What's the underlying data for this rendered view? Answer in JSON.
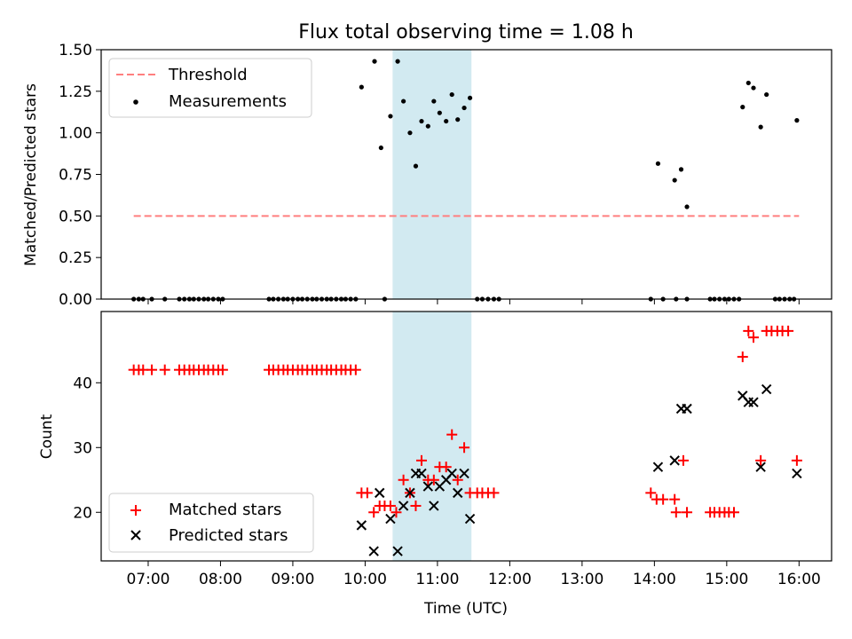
{
  "title": "Flux total observing time = 1.08 h",
  "chart_data": [
    {
      "type": "scatter",
      "ylabel": "Matched/Predicted stars",
      "xlim": [
        6.35,
        16.45
      ],
      "ylim": [
        0,
        1.5
      ],
      "yticks": [
        0.0,
        0.25,
        0.5,
        0.75,
        1.0,
        1.25,
        1.5
      ],
      "ytick_labels": [
        "0.00",
        "0.25",
        "0.50",
        "0.75",
        "1.00",
        "1.25",
        "1.50"
      ],
      "highlight_span": [
        10.38,
        11.47
      ],
      "legend_position": "upper-left",
      "threshold": {
        "name": "Threshold",
        "value": 0.5,
        "x_range": [
          6.8,
          16.0
        ],
        "color": "#ff7f7f"
      },
      "series": [
        {
          "name": "Measurements",
          "color": "#000000",
          "points": [
            [
              6.8,
              0
            ],
            [
              6.87,
              0
            ],
            [
              6.93,
              0
            ],
            [
              7.05,
              0
            ],
            [
              7.23,
              0
            ],
            [
              7.43,
              0
            ],
            [
              7.5,
              0
            ],
            [
              7.57,
              0
            ],
            [
              7.63,
              0
            ],
            [
              7.7,
              0
            ],
            [
              7.77,
              0
            ],
            [
              7.83,
              0
            ],
            [
              7.9,
              0
            ],
            [
              7.97,
              0
            ],
            [
              8.03,
              0
            ],
            [
              8.67,
              0
            ],
            [
              8.73,
              0
            ],
            [
              8.8,
              0
            ],
            [
              8.87,
              0
            ],
            [
              8.93,
              0
            ],
            [
              9.0,
              0
            ],
            [
              9.07,
              0
            ],
            [
              9.13,
              0
            ],
            [
              9.2,
              0
            ],
            [
              9.27,
              0
            ],
            [
              9.33,
              0
            ],
            [
              9.4,
              0
            ],
            [
              9.47,
              0
            ],
            [
              9.53,
              0
            ],
            [
              9.6,
              0
            ],
            [
              9.67,
              0
            ],
            [
              9.73,
              0
            ],
            [
              9.8,
              0
            ],
            [
              9.87,
              0
            ],
            [
              9.95,
              1.275
            ],
            [
              10.13,
              1.43
            ],
            [
              10.22,
              0.91
            ],
            [
              10.27,
              0
            ],
            [
              10.35,
              1.1
            ],
            [
              10.45,
              1.43
            ],
            [
              10.53,
              1.19
            ],
            [
              10.62,
              1.0
            ],
            [
              10.7,
              0.8
            ],
            [
              10.78,
              1.07
            ],
            [
              10.87,
              1.04
            ],
            [
              10.95,
              1.19
            ],
            [
              11.03,
              1.12
            ],
            [
              11.12,
              1.07
            ],
            [
              11.2,
              1.23
            ],
            [
              11.28,
              1.08
            ],
            [
              11.37,
              1.15
            ],
            [
              11.45,
              1.21
            ],
            [
              11.55,
              0
            ],
            [
              11.62,
              0
            ],
            [
              11.7,
              0
            ],
            [
              11.78,
              0
            ],
            [
              11.85,
              0
            ],
            [
              13.95,
              0
            ],
            [
              14.05,
              0.815
            ],
            [
              14.12,
              0
            ],
            [
              14.28,
              0.715
            ],
            [
              14.3,
              0
            ],
            [
              14.37,
              0.78
            ],
            [
              14.45,
              0.555
            ],
            [
              14.45,
              0
            ],
            [
              14.77,
              0
            ],
            [
              14.83,
              0
            ],
            [
              14.9,
              0
            ],
            [
              14.97,
              0
            ],
            [
              15.03,
              0
            ],
            [
              15.1,
              0
            ],
            [
              15.17,
              0
            ],
            [
              15.22,
              1.155
            ],
            [
              15.3,
              1.3
            ],
            [
              15.37,
              1.27
            ],
            [
              15.47,
              1.035
            ],
            [
              15.55,
              1.23
            ],
            [
              15.67,
              0
            ],
            [
              15.73,
              0
            ],
            [
              15.8,
              0
            ],
            [
              15.87,
              0
            ],
            [
              15.93,
              0
            ],
            [
              15.97,
              1.075
            ]
          ]
        }
      ]
    },
    {
      "type": "scatter",
      "xlabel": "Time (UTC)",
      "ylabel": "Count",
      "xlim": [
        6.35,
        16.45
      ],
      "ylim": [
        12.5,
        51
      ],
      "yticks": [
        20,
        30,
        40
      ],
      "xticks": [
        7,
        8,
        9,
        10,
        11,
        12,
        13,
        14,
        15,
        16
      ],
      "xtick_labels": [
        "07:00",
        "08:00",
        "09:00",
        "10:00",
        "11:00",
        "12:00",
        "13:00",
        "14:00",
        "15:00",
        "16:00"
      ],
      "highlight_span": [
        10.38,
        11.47
      ],
      "legend_position": "lower-left",
      "series": [
        {
          "name": "Matched stars",
          "marker": "plus",
          "color": "#ff0000",
          "points": [
            [
              6.8,
              42
            ],
            [
              6.87,
              42
            ],
            [
              6.93,
              42
            ],
            [
              7.05,
              42
            ],
            [
              7.23,
              42
            ],
            [
              7.43,
              42
            ],
            [
              7.5,
              42
            ],
            [
              7.57,
              42
            ],
            [
              7.63,
              42
            ],
            [
              7.7,
              42
            ],
            [
              7.77,
              42
            ],
            [
              7.83,
              42
            ],
            [
              7.9,
              42
            ],
            [
              7.97,
              42
            ],
            [
              8.03,
              42
            ],
            [
              8.67,
              42
            ],
            [
              8.73,
              42
            ],
            [
              8.8,
              42
            ],
            [
              8.87,
              42
            ],
            [
              8.93,
              42
            ],
            [
              9.0,
              42
            ],
            [
              9.07,
              42
            ],
            [
              9.13,
              42
            ],
            [
              9.2,
              42
            ],
            [
              9.27,
              42
            ],
            [
              9.33,
              42
            ],
            [
              9.4,
              42
            ],
            [
              9.47,
              42
            ],
            [
              9.53,
              42
            ],
            [
              9.6,
              42
            ],
            [
              9.67,
              42
            ],
            [
              9.73,
              42
            ],
            [
              9.8,
              42
            ],
            [
              9.87,
              42
            ],
            [
              9.95,
              23
            ],
            [
              10.03,
              23
            ],
            [
              10.12,
              20
            ],
            [
              10.2,
              21
            ],
            [
              10.27,
              21
            ],
            [
              10.35,
              21
            ],
            [
              10.43,
              20
            ],
            [
              10.53,
              25
            ],
            [
              10.62,
              23
            ],
            [
              10.7,
              21
            ],
            [
              10.78,
              28
            ],
            [
              10.87,
              25
            ],
            [
              10.95,
              25
            ],
            [
              11.03,
              27
            ],
            [
              11.12,
              27
            ],
            [
              11.2,
              32
            ],
            [
              11.28,
              25
            ],
            [
              11.37,
              30
            ],
            [
              11.45,
              23
            ],
            [
              11.55,
              23
            ],
            [
              11.62,
              23
            ],
            [
              11.7,
              23
            ],
            [
              11.78,
              23
            ],
            [
              13.95,
              23
            ],
            [
              14.03,
              22
            ],
            [
              14.12,
              22
            ],
            [
              14.28,
              22
            ],
            [
              14.3,
              20
            ],
            [
              14.4,
              28
            ],
            [
              14.45,
              20
            ],
            [
              14.77,
              20
            ],
            [
              14.83,
              20
            ],
            [
              14.9,
              20
            ],
            [
              14.97,
              20
            ],
            [
              15.03,
              20
            ],
            [
              15.1,
              20
            ],
            [
              15.22,
              44
            ],
            [
              15.3,
              48
            ],
            [
              15.37,
              47
            ],
            [
              15.47,
              28
            ],
            [
              15.55,
              48
            ],
            [
              15.62,
              48
            ],
            [
              15.7,
              48
            ],
            [
              15.77,
              48
            ],
            [
              15.85,
              48
            ],
            [
              15.97,
              28
            ]
          ]
        },
        {
          "name": "Predicted stars",
          "marker": "x",
          "color": "#000000",
          "points": [
            [
              9.95,
              18
            ],
            [
              10.12,
              14
            ],
            [
              10.2,
              23
            ],
            [
              10.35,
              19
            ],
            [
              10.45,
              14
            ],
            [
              10.53,
              21
            ],
            [
              10.62,
              23
            ],
            [
              10.7,
              26
            ],
            [
              10.78,
              26
            ],
            [
              10.87,
              24
            ],
            [
              10.95,
              21
            ],
            [
              11.03,
              24
            ],
            [
              11.12,
              25
            ],
            [
              11.2,
              26
            ],
            [
              11.28,
              23
            ],
            [
              11.37,
              26
            ],
            [
              11.45,
              19
            ],
            [
              14.05,
              27
            ],
            [
              14.28,
              28
            ],
            [
              14.37,
              36
            ],
            [
              14.45,
              36
            ],
            [
              15.22,
              38
            ],
            [
              15.3,
              37
            ],
            [
              15.37,
              37
            ],
            [
              15.47,
              27
            ],
            [
              15.55,
              39
            ],
            [
              15.97,
              26
            ]
          ]
        }
      ]
    }
  ]
}
